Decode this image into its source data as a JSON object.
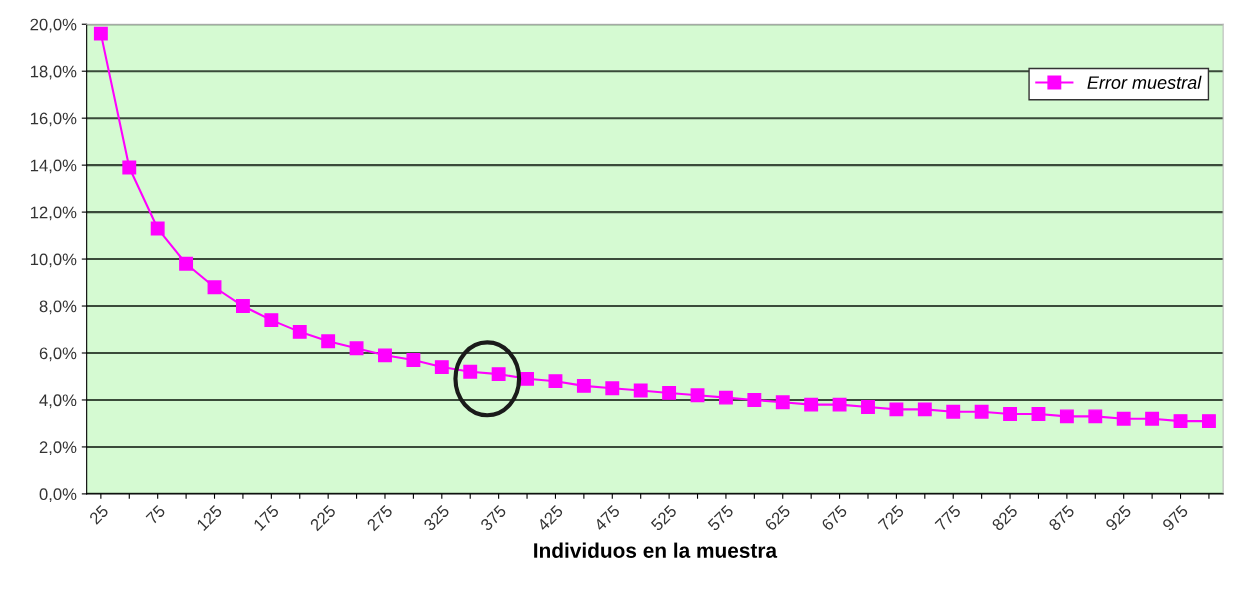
{
  "chart_data": {
    "type": "line",
    "xlabel": "Individuos en la muestra",
    "categories": [
      "25",
      null,
      "75",
      null,
      "125",
      null,
      "175",
      null,
      "225",
      null,
      "275",
      null,
      "325",
      null,
      "375",
      null,
      "425",
      null,
      "475",
      null,
      "525",
      null,
      "575",
      null,
      "625",
      null,
      "675",
      null,
      "725",
      null,
      "775",
      null,
      "825",
      null,
      "875",
      null,
      "925",
      null,
      "975",
      null
    ],
    "series": [
      {
        "name": "Error muestral",
        "color": "#ff00ff",
        "values": [
          19.6,
          13.9,
          11.3,
          9.8,
          8.8,
          8.0,
          7.4,
          6.9,
          6.5,
          6.2,
          5.9,
          5.7,
          5.4,
          5.2,
          5.1,
          4.9,
          4.8,
          4.6,
          4.5,
          4.4,
          4.3,
          4.2,
          4.1,
          4.0,
          3.9,
          3.8,
          3.8,
          3.7,
          3.6,
          3.6,
          3.5,
          3.5,
          3.4,
          3.4,
          3.3,
          3.3,
          3.2,
          3.2,
          3.1,
          3.1
        ]
      }
    ],
    "ylim": [
      0,
      20
    ],
    "yticks": [
      {
        "value": 0,
        "label": "0,0%"
      },
      {
        "value": 2,
        "label": "2,0%"
      },
      {
        "value": 4,
        "label": "4,0%"
      },
      {
        "value": 6,
        "label": "6,0%"
      },
      {
        "value": 8,
        "label": "8,0%"
      },
      {
        "value": 10,
        "label": "10,0%"
      },
      {
        "value": 12,
        "label": "12,0%"
      },
      {
        "value": 14,
        "label": "14,0%"
      },
      {
        "value": 16,
        "label": "16,0%"
      },
      {
        "value": 18,
        "label": "18,0%"
      },
      {
        "value": 20,
        "label": "20,0%"
      }
    ],
    "grid": "y",
    "legend": "top right",
    "marker": "square",
    "line_style": "solid"
  }
}
